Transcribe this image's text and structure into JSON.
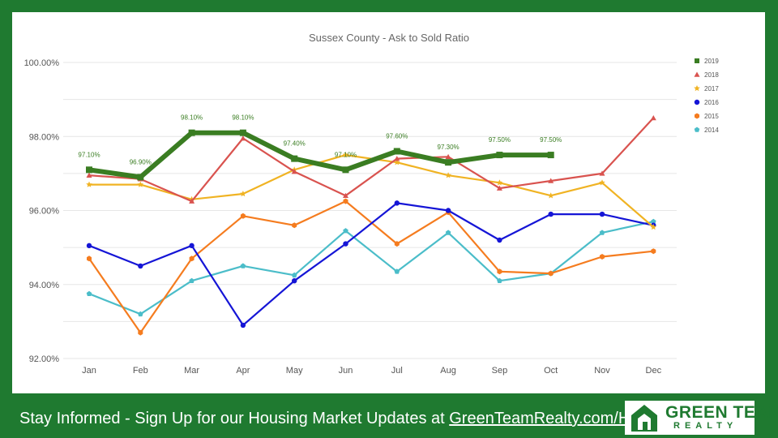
{
  "colors": {
    "background": "#1f7a30",
    "panel": "#ffffff",
    "grid": "#e6e6e6",
    "axis_text": "#555555",
    "footer_text": "#ffffff",
    "logo_green": "#1f7a30"
  },
  "chart_data": {
    "type": "line",
    "title": "Sussex County - Ask to Sold Ratio",
    "xlabel": "",
    "ylabel": "",
    "categories": [
      "Jan",
      "Feb",
      "Mar",
      "Apr",
      "May",
      "Jun",
      "Jul",
      "Aug",
      "Sep",
      "Oct",
      "Nov",
      "Dec"
    ],
    "ylim": [
      92,
      100
    ],
    "y_ticks": [
      92,
      94,
      96,
      98,
      100
    ],
    "y_tick_labels": [
      "92.00%",
      "94.00%",
      "96.00%",
      "98.00%",
      "100.00%"
    ],
    "grid": true,
    "legend_position": "right",
    "series": [
      {
        "name": "2019",
        "color": "#3a7d22",
        "marker": "square",
        "values": [
          97.1,
          96.9,
          98.1,
          98.1,
          97.4,
          97.1,
          97.6,
          97.3,
          97.5,
          97.5,
          null,
          null
        ],
        "data_labels": [
          "97.10%",
          "96.90%",
          "98.10%",
          "98.10%",
          "97.40%",
          "97.10%",
          "97.60%",
          "97.30%",
          "97.50%",
          "97.50%",
          "",
          ""
        ]
      },
      {
        "name": "2018",
        "color": "#d9534f",
        "marker": "triangle",
        "values": [
          96.95,
          96.85,
          96.25,
          97.95,
          97.05,
          96.4,
          97.4,
          97.45,
          96.6,
          96.8,
          97.0,
          98.5
        ]
      },
      {
        "name": "2017",
        "color": "#f0b323",
        "marker": "star",
        "values": [
          96.7,
          96.7,
          96.3,
          96.45,
          97.1,
          97.5,
          97.3,
          96.95,
          96.75,
          96.4,
          96.75,
          95.55
        ]
      },
      {
        "name": "2016",
        "color": "#1515d6",
        "marker": "circle",
        "values": [
          95.05,
          94.5,
          95.05,
          92.9,
          94.1,
          95.1,
          96.2,
          96.0,
          95.2,
          95.9,
          95.9,
          95.6
        ]
      },
      {
        "name": "2015",
        "color": "#f57c1f",
        "marker": "hexagon",
        "values": [
          94.7,
          92.7,
          94.7,
          95.85,
          95.6,
          96.25,
          95.1,
          95.95,
          94.35,
          94.3,
          94.75,
          94.9
        ]
      },
      {
        "name": "2014",
        "color": "#4bbdc9",
        "marker": "pentagon",
        "values": [
          93.75,
          93.2,
          94.1,
          94.5,
          94.25,
          95.45,
          94.35,
          95.4,
          94.1,
          94.3,
          95.4,
          95.7
        ]
      }
    ]
  },
  "footer": {
    "text": "Stay Informed - Sign Up for our Housing Market Updates at ",
    "link": "GreenTeamRealty.com/HMU"
  },
  "logo": {
    "line1": "GREEN TEAM",
    "line2": "REALTY"
  }
}
